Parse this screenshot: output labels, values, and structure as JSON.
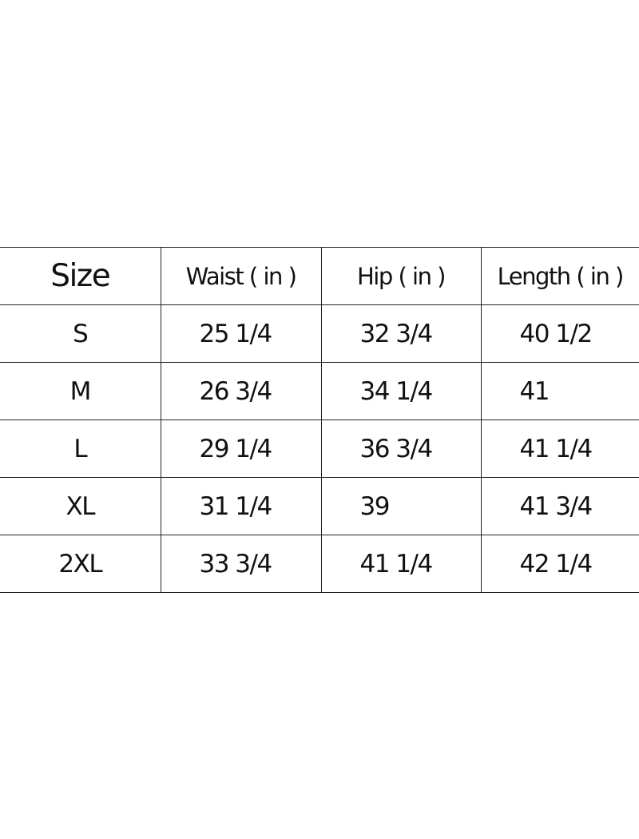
{
  "table": {
    "header": [
      "Size",
      "Waist ( in )",
      "Hip ( in )",
      "Length ( in )"
    ],
    "rows": [
      [
        "S",
        "25 1/4",
        "32 3/4",
        "40 1/2"
      ],
      [
        "M",
        "26 3/4",
        "34 1/4",
        "41"
      ],
      [
        "L",
        "29 1/4",
        "36 3/4",
        "41 1/4"
      ],
      [
        "XL",
        "31 1/4",
        "39",
        "41 3/4"
      ],
      [
        "2XL",
        "33 3/4",
        "41 1/4",
        "42 1/4"
      ]
    ]
  }
}
